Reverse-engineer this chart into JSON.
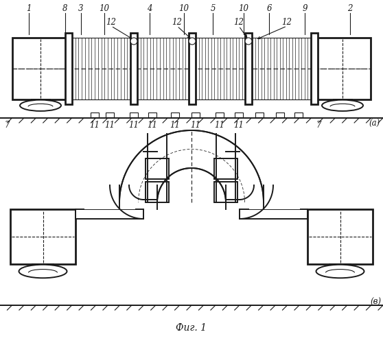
{
  "bg_color": "#ffffff",
  "line_color": "#1a1a1a",
  "fig_width": 5.58,
  "fig_height": 5.0,
  "dpi": 100,
  "caption": "Фиг. 1",
  "label_a": "(а)",
  "label_b": "(в)"
}
